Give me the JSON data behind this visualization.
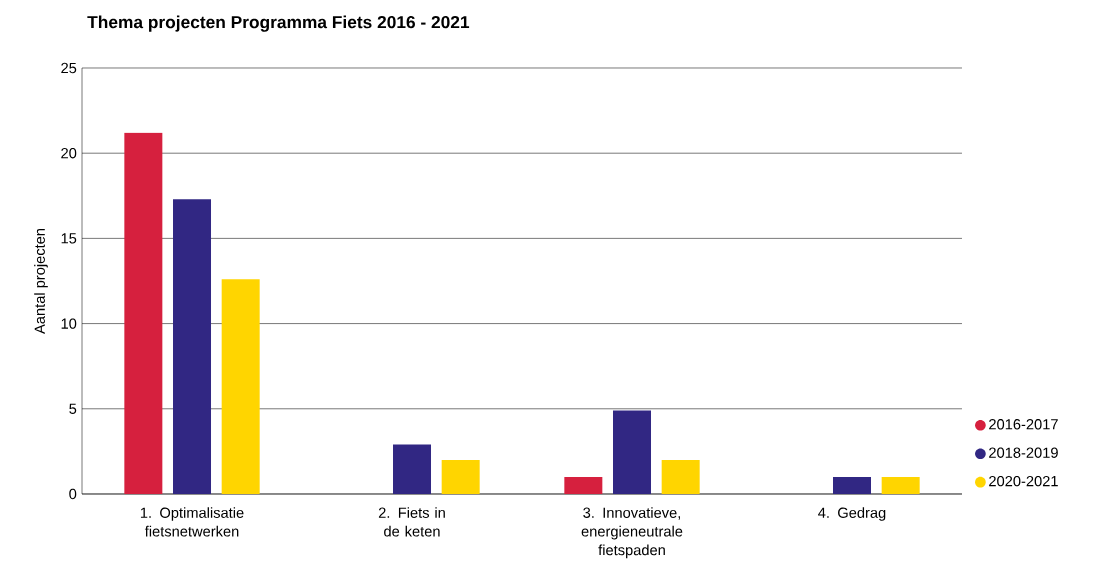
{
  "chart_data": {
    "type": "bar",
    "title": "Thema projecten Programma Fiets 2016 - 2021",
    "ylabel": "Aantal projecten",
    "categories": [
      "1. Optimalisatie fietsnetwerken",
      "2. Fiets in de keten",
      "3. Innovatieve, energieneutrale fietspaden",
      "4. Gedrag"
    ],
    "series": [
      {
        "name": "2016-2017",
        "color": "#d6203e",
        "values": [
          21.2,
          0,
          1,
          0
        ]
      },
      {
        "name": "2018-2019",
        "color": "#312783",
        "values": [
          17.3,
          2.9,
          4.9,
          1
        ]
      },
      {
        "name": "2020-2021",
        "color": "#ffd500",
        "values": [
          12.6,
          2,
          2,
          1
        ]
      }
    ],
    "ylim": [
      0,
      25
    ],
    "yticks": [
      0,
      5,
      10,
      15,
      20,
      25
    ],
    "grid": "y",
    "legend": "bottom right"
  }
}
